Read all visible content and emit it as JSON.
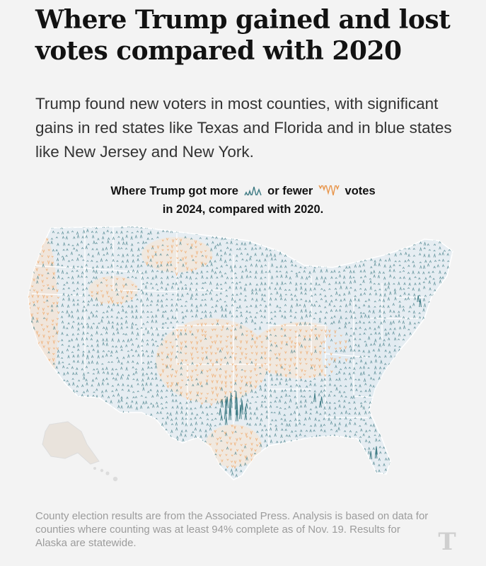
{
  "headline": "Where Trump gained and lost votes compared with 2020",
  "dek": "Trump found new voters in most counties, with significant gains in red states like Texas and Florida and in blue states like New Jersey and New York.",
  "legend": {
    "part1": "Where Trump got more",
    "part2": "or fewer",
    "part3": "votes",
    "line2": "in 2024, compared with 2020.",
    "more_color": "#3d7a83",
    "fewer_color": "#e8954a"
  },
  "map": {
    "type": "county spike map",
    "region": "United States (lower 48, Alaska, Hawaii)",
    "gain_color": "#3d7a83",
    "loss_color": "#f0a868",
    "state_fill": "#e6edf2",
    "state_stroke": "#ffffff"
  },
  "footer": "County election results are from the Associated Press. Analysis is based on data for counties where counting was at least 94% complete as of Nov. 19. Results for Alaska are statewide.",
  "logo": "T"
}
